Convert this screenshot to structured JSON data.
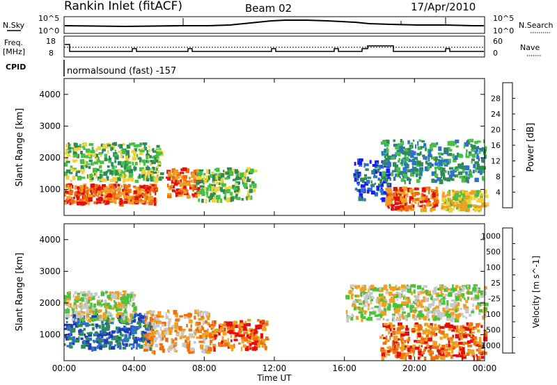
{
  "header": {
    "station": "Rankin Inlet (fitACF)",
    "beam": "Beam 02",
    "date": "17/Apr/2010"
  },
  "top_panels": {
    "nsky_label": "N.Sky",
    "nsky_ticks": [
      "10^5",
      "10^0"
    ],
    "nsearch_label": "N.Search",
    "nsearch_ticks": [
      "10^5",
      "10^0"
    ],
    "freq_label": "Freq.",
    "freq_unit": "[MHz]",
    "freq_ticks": [
      "18",
      "8"
    ],
    "nave_label": "Nave",
    "nave_ticks": [
      "60",
      "0"
    ],
    "cpid_label": "CPID",
    "cpid_text": "normalsound (fast) -157"
  },
  "chart_data": [
    {
      "type": "heatmap",
      "name": "power",
      "ylabel": "Slant Range [km]",
      "xlabel": "",
      "x_ticks": [
        "00:00",
        "04:00",
        "08:00",
        "12:00",
        "16:00",
        "20:00",
        "00:00"
      ],
      "y_ticks": [
        1000,
        2000,
        3000,
        4000
      ],
      "ylim": [
        180,
        4500
      ],
      "xlim_hours": [
        0,
        24
      ],
      "colorbar": {
        "label": "Power [dB]",
        "ticks": [
          "4",
          "8",
          "12",
          "16",
          "20",
          "24",
          "28"
        ],
        "colors": [
          "#1a1aff",
          "#2f6fd0",
          "#2e8b57",
          "#48c048",
          "#f2d23a",
          "#f0a020",
          "#f06a10",
          "#e01010"
        ]
      },
      "regions": [
        {
          "t0": 0.0,
          "t1": 5.2,
          "r0": 600,
          "r1": 1200,
          "level": 6
        },
        {
          "t0": 0.0,
          "t1": 5.5,
          "r0": 1300,
          "r1": 2500,
          "level": 3
        },
        {
          "t0": 5.8,
          "t1": 7.6,
          "r0": 800,
          "r1": 1700,
          "level": 6
        },
        {
          "t0": 7.5,
          "t1": 10.8,
          "r0": 700,
          "r1": 1700,
          "level": 3
        },
        {
          "t0": 16.5,
          "t1": 18.5,
          "r0": 700,
          "r1": 2000,
          "level": 1
        },
        {
          "t0": 18.3,
          "t1": 21.2,
          "r0": 400,
          "r1": 1100,
          "level": 6
        },
        {
          "t0": 18.0,
          "t1": 24.0,
          "r0": 1300,
          "r1": 2600,
          "level": 2
        },
        {
          "t0": 21.5,
          "t1": 24.0,
          "r0": 400,
          "r1": 1000,
          "level": 4
        }
      ]
    },
    {
      "type": "heatmap",
      "name": "velocity",
      "ylabel": "Slant Range [km]",
      "xlabel": "Time UT",
      "x_ticks": [
        "00:00",
        "04:00",
        "08:00",
        "12:00",
        "16:00",
        "20:00",
        "00:00"
      ],
      "y_ticks": [
        1000,
        2000,
        3000,
        4000
      ],
      "ylim": [
        180,
        4500
      ],
      "xlim_hours": [
        0,
        24
      ],
      "colorbar": {
        "label": "Velocity [m s^-1]",
        "ticks": [
          "1000",
          "500",
          "100",
          "25",
          "-25",
          "-100",
          "-500",
          "-1000"
        ],
        "colors": [
          "#1f3fb0",
          "#2f6fd0",
          "#2e8b57",
          "#4cc23a",
          "#c8c8c8",
          "#f0a020",
          "#f07010",
          "#e01010"
        ]
      },
      "regions": [
        {
          "t0": 0.0,
          "t1": 5.0,
          "r0": 600,
          "r1": 1700,
          "level": 1
        },
        {
          "t0": 0.0,
          "t1": 4.0,
          "r0": 1500,
          "r1": 2400,
          "level": 4
        },
        {
          "t0": 4.5,
          "t1": 8.2,
          "r0": 500,
          "r1": 1800,
          "level": 5
        },
        {
          "t0": 8.2,
          "t1": 11.5,
          "r0": 600,
          "r1": 1500,
          "level": 6
        },
        {
          "t0": 16.0,
          "t1": 24.0,
          "r0": 1500,
          "r1": 2600,
          "level": 4
        },
        {
          "t0": 18.0,
          "t1": 24.0,
          "r0": 300,
          "r1": 1400,
          "level": 6
        }
      ]
    }
  ]
}
